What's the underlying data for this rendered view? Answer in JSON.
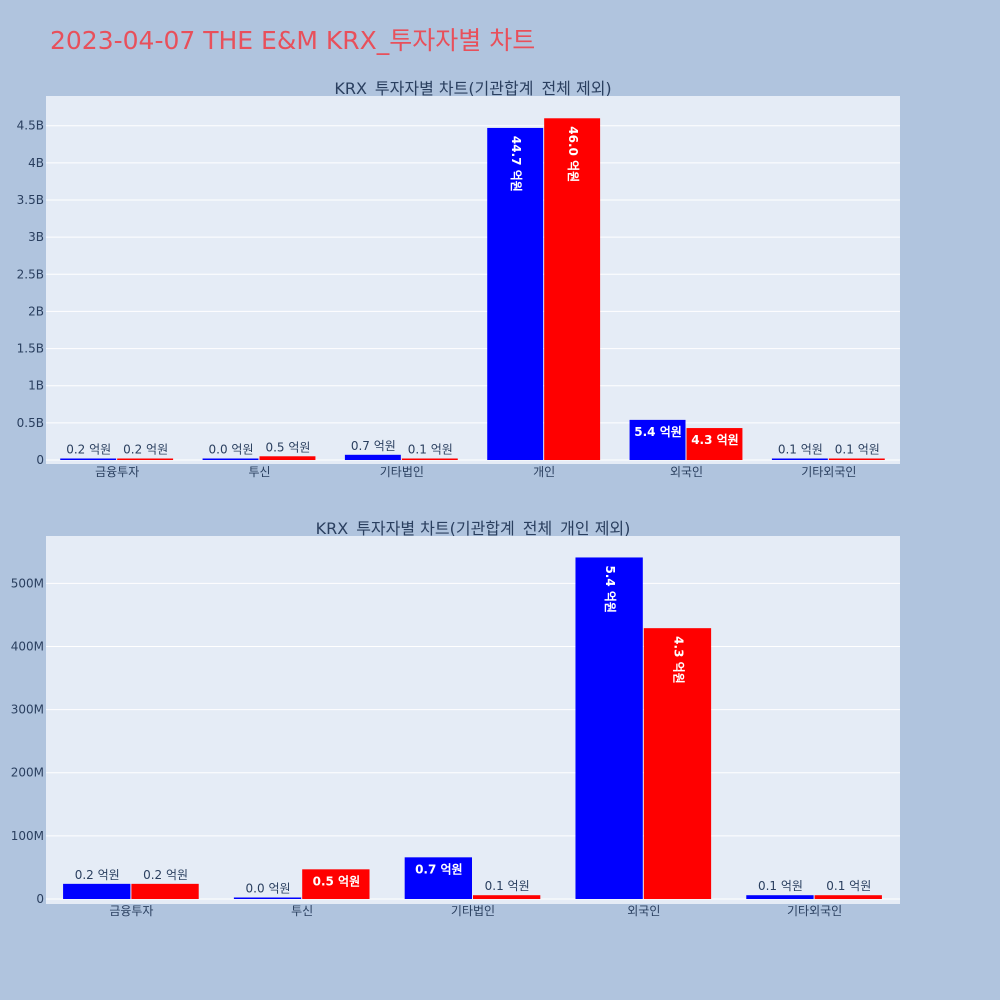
{
  "title": "2023-04-07 THE E&M KRX_투자자별 차트",
  "colors": {
    "background": "#b0c4de",
    "plot_background": "#e5ecf6",
    "series_a": "#0000ff",
    "series_b": "#ff0000",
    "title": "#e8505b"
  },
  "chart_data": [
    {
      "type": "bar",
      "title": "KRX_투자자별 차트(기관합계_전체 제외)",
      "categories": [
        "금융투자",
        "투신",
        "기타법인",
        "개인",
        "외국인",
        "기타외국인"
      ],
      "series": [
        {
          "values": [
            20000000,
            2000000,
            70000000,
            4470000000,
            540000000,
            10000000
          ],
          "labels": [
            "0.2 억원",
            "0.0 억원",
            "0.7 억원",
            "44.7 억원",
            "5.4 억원",
            "0.1 억원"
          ]
        },
        {
          "values": [
            20000000,
            50000000,
            10000000,
            4600000000,
            430000000,
            10000000
          ],
          "labels": [
            "0.2 억원",
            "0.5 억원",
            "0.1 억원",
            "46.0 억원",
            "4.3 억원",
            "0.1 억원"
          ]
        }
      ],
      "ylim": [
        0,
        4900000000
      ],
      "yticks": [
        0,
        500000000,
        1000000000,
        1500000000,
        2000000000,
        2500000000,
        3000000000,
        3500000000,
        4000000000,
        4500000000
      ],
      "yticklabels": [
        "0",
        "0.5B",
        "1B",
        "1.5B",
        "2B",
        "2.5B",
        "3B",
        "3.5B",
        "4B",
        "4.5B"
      ],
      "grid": true,
      "legend": "none"
    },
    {
      "type": "bar",
      "title": "KRX_투자자별 차트(기관합계_전체_개인 제외)",
      "categories": [
        "금융투자",
        "투신",
        "기타법인",
        "외국인",
        "기타외국인"
      ],
      "series": [
        {
          "values": [
            24000000,
            2000000,
            66000000,
            541000000,
            6000000
          ],
          "labels": [
            "0.2 억원",
            "0.0 억원",
            "0.7 억원",
            "5.4 억원",
            "0.1 억원"
          ]
        },
        {
          "values": [
            24000000,
            47000000,
            6000000,
            429000000,
            6000000
          ],
          "labels": [
            "0.2 억원",
            "0.5 억원",
            "0.1 억원",
            "4.3 억원",
            "0.1 억원"
          ]
        }
      ],
      "ylim": [
        0,
        575000000
      ],
      "yticks": [
        0,
        100000000,
        200000000,
        300000000,
        400000000,
        500000000
      ],
      "yticklabels": [
        "0",
        "100M",
        "200M",
        "300M",
        "400M",
        "500M"
      ],
      "grid": true,
      "legend": "none"
    }
  ]
}
